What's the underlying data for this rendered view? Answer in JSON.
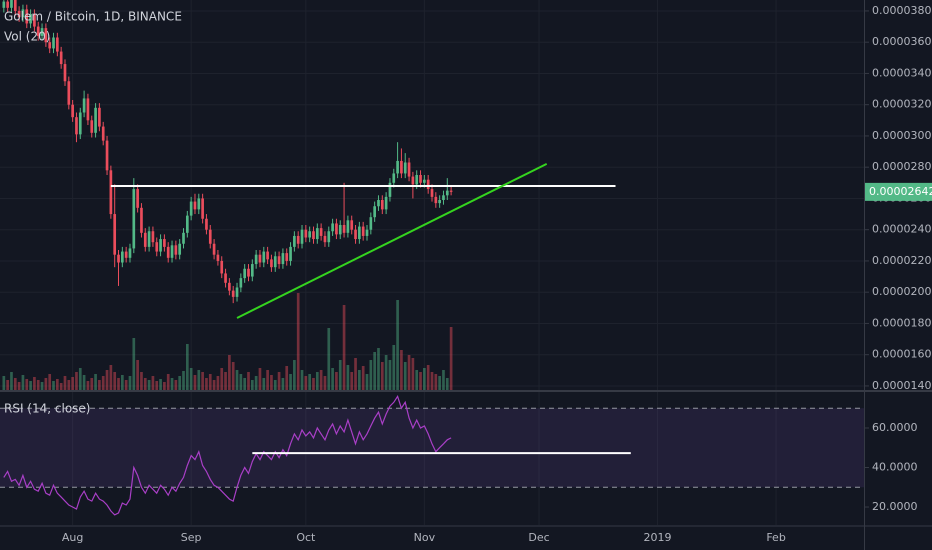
{
  "chart_data": [
    {
      "type": "candlestick",
      "title": "Golem / Bitcoin, 1D, BINANCE",
      "volume_title": "Vol (20)",
      "up_color": "#53b987",
      "down_color": "#eb4d5c",
      "grid": true,
      "xlim": [
        -1,
        225
      ],
      "xticks": [
        {
          "value": 18,
          "label": "Aug"
        },
        {
          "value": 49,
          "label": "Sep"
        },
        {
          "value": 79,
          "label": "Oct"
        },
        {
          "value": 110,
          "label": "Nov"
        },
        {
          "value": 140,
          "label": "Dec"
        },
        {
          "value": 171,
          "label": "2019"
        },
        {
          "value": 202,
          "label": "Feb"
        }
      ],
      "ylim": [
        1.374e-05,
        3.87e-05
      ],
      "yticks": [
        {
          "value": 1.4e-05,
          "label": "0.00001400"
        },
        {
          "value": 1.6e-05,
          "label": "0.00001600"
        },
        {
          "value": 1.8e-05,
          "label": "0.00001800"
        },
        {
          "value": 2e-05,
          "label": "0.00002000"
        },
        {
          "value": 2.2e-05,
          "label": "0.00002200"
        },
        {
          "value": 2.4e-05,
          "label": "0.00002400"
        },
        {
          "value": 2.6e-05,
          "label": "0.00002600"
        },
        {
          "value": 2.8e-05,
          "label": "0.00002800"
        },
        {
          "value": 3e-05,
          "label": "0.00003000"
        },
        {
          "value": 3.2e-05,
          "label": "0.00003200"
        },
        {
          "value": 3.4e-05,
          "label": "0.00003400"
        },
        {
          "value": 3.6e-05,
          "label": "0.00003600"
        },
        {
          "value": 3.8e-05,
          "label": "0.00003800"
        }
      ],
      "price_tag": {
        "value": 2.642e-05,
        "label": "0.00002642"
      },
      "open": [
        3.82e-05,
        3.86e-05,
        3.82e-05,
        3.89e-05,
        3.8e-05,
        3.76e-05,
        3.81e-05,
        3.72e-05,
        3.78e-05,
        3.7e-05,
        3.64e-05,
        3.69e-05,
        3.6e-05,
        3.56e-05,
        3.63e-05,
        3.54e-05,
        3.46e-05,
        3.35e-05,
        3.2e-05,
        3.12e-05,
        3.01e-05,
        3.15e-05,
        3.24e-05,
        3.1e-05,
        3.02e-05,
        3.18e-05,
        3.06e-05,
        2.97e-05,
        2.78e-05,
        2.5e-05,
        2.24e-05,
        2.19e-05,
        2.26e-05,
        2.22e-05,
        2.28e-05,
        2.66e-05,
        2.54e-05,
        2.38e-05,
        2.29e-05,
        2.39e-05,
        2.32e-05,
        2.26e-05,
        2.34e-05,
        2.29e-05,
        2.22e-05,
        2.3e-05,
        2.24e-05,
        2.31e-05,
        2.38e-05,
        2.49e-05,
        2.58e-05,
        2.53e-05,
        2.6e-05,
        2.47e-05,
        2.4e-05,
        2.31e-05,
        2.24e-05,
        2.2e-05,
        2.12e-05,
        2.06e-05,
        2.01e-05,
        1.97e-05,
        2.03e-05,
        2.09e-05,
        2.15e-05,
        2.1e-05,
        2.18e-05,
        2.24e-05,
        2.19e-05,
        2.26e-05,
        2.21e-05,
        2.16e-05,
        2.23e-05,
        2.18e-05,
        2.25e-05,
        2.2e-05,
        2.29e-05,
        2.36e-05,
        2.31e-05,
        2.4e-05,
        2.35e-05,
        2.39e-05,
        2.34e-05,
        2.41e-05,
        2.36e-05,
        2.32e-05,
        2.39e-05,
        2.44e-05,
        2.37e-05,
        2.43e-05,
        2.38e-05,
        2.46e-05,
        2.4e-05,
        2.34e-05,
        2.42e-05,
        2.36e-05,
        2.4e-05,
        2.48e-05,
        2.55e-05,
        2.59e-05,
        2.53e-05,
        2.61e-05,
        2.7e-05,
        2.76e-05,
        2.84e-05,
        2.76e-05,
        2.83e-05,
        2.74e-05,
        2.69e-05,
        2.75e-05,
        2.7e-05,
        2.72e-05,
        2.66e-05,
        2.61e-05,
        2.57e-05,
        2.59e-05,
        2.62e-05,
        2.65e-05
      ],
      "high": [
        3.89e-05,
        3.89e-05,
        3.92e-05,
        3.92e-05,
        3.83e-05,
        3.84e-05,
        3.84e-05,
        3.81e-05,
        3.81e-05,
        3.73e-05,
        3.72e-05,
        3.72e-05,
        3.63e-05,
        3.66e-05,
        3.66e-05,
        3.57e-05,
        3.49e-05,
        3.38e-05,
        3.23e-05,
        3.15e-05,
        3.18e-05,
        3.29e-05,
        3.27e-05,
        3.13e-05,
        3.21e-05,
        3.21e-05,
        3.09e-05,
        3e-05,
        2.81e-05,
        2.69e-05,
        2.27e-05,
        2.29e-05,
        2.29e-05,
        2.31e-05,
        2.73e-05,
        2.69e-05,
        2.57e-05,
        2.41e-05,
        2.42e-05,
        2.42e-05,
        2.35e-05,
        2.37e-05,
        2.37e-05,
        2.32e-05,
        2.33e-05,
        2.33e-05,
        2.34e-05,
        2.41e-05,
        2.52e-05,
        2.61e-05,
        2.63e-05,
        2.63e-05,
        2.63e-05,
        2.5e-05,
        2.43e-05,
        2.34e-05,
        2.27e-05,
        2.23e-05,
        2.15e-05,
        2.09e-05,
        2.04e-05,
        2.06e-05,
        2.12e-05,
        2.18e-05,
        2.18e-05,
        2.21e-05,
        2.27e-05,
        2.27e-05,
        2.29e-05,
        2.29e-05,
        2.24e-05,
        2.26e-05,
        2.26e-05,
        2.28e-05,
        2.28e-05,
        2.32e-05,
        2.39e-05,
        2.39e-05,
        2.43e-05,
        2.43e-05,
        2.42e-05,
        2.42e-05,
        2.44e-05,
        2.44e-05,
        2.39e-05,
        2.42e-05,
        2.47e-05,
        2.47e-05,
        2.46e-05,
        2.7e-05,
        2.49e-05,
        2.49e-05,
        2.43e-05,
        2.45e-05,
        2.45e-05,
        2.43e-05,
        2.51e-05,
        2.58e-05,
        2.62e-05,
        2.62e-05,
        2.64e-05,
        2.73e-05,
        2.79e-05,
        2.96e-05,
        2.92e-05,
        2.89e-05,
        2.86e-05,
        2.77e-05,
        2.78e-05,
        2.78e-05,
        2.75e-05,
        2.75e-05,
        2.69e-05,
        2.64e-05,
        2.62e-05,
        2.65e-05,
        2.73e-05,
        2.68e-05
      ],
      "low": [
        3.79e-05,
        3.79e-05,
        3.79e-05,
        3.77e-05,
        3.73e-05,
        3.73e-05,
        3.69e-05,
        3.69e-05,
        3.67e-05,
        3.61e-05,
        3.61e-05,
        3.57e-05,
        3.53e-05,
        3.53e-05,
        3.51e-05,
        3.43e-05,
        3.32e-05,
        3.17e-05,
        3.09e-05,
        2.96e-05,
        2.98e-05,
        3.12e-05,
        3.07e-05,
        2.99e-05,
        2.99e-05,
        3.03e-05,
        2.94e-05,
        2.75e-05,
        2.47e-05,
        2.16e-05,
        2.04e-05,
        2.16e-05,
        2.19e-05,
        2.19e-05,
        2.25e-05,
        2.51e-05,
        2.35e-05,
        2.26e-05,
        2.26e-05,
        2.29e-05,
        2.23e-05,
        2.23e-05,
        2.26e-05,
        2.19e-05,
        2.19e-05,
        2.21e-05,
        2.21e-05,
        2.28e-05,
        2.35e-05,
        2.46e-05,
        2.5e-05,
        2.5e-05,
        2.44e-05,
        2.37e-05,
        2.28e-05,
        2.21e-05,
        2.17e-05,
        2.09e-05,
        2.03e-05,
        1.98e-05,
        1.93e-05,
        1.94e-05,
        2e-05,
        2.06e-05,
        2.07e-05,
        2.07e-05,
        2.15e-05,
        2.16e-05,
        2.16e-05,
        2.18e-05,
        2.13e-05,
        2.13e-05,
        2.15e-05,
        2.15e-05,
        2.17e-05,
        2.17e-05,
        2.26e-05,
        2.28e-05,
        2.28e-05,
        2.32e-05,
        2.32e-05,
        2.31e-05,
        2.31e-05,
        2.33e-05,
        2.29e-05,
        2.29e-05,
        2.36e-05,
        2.34e-05,
        2.34e-05,
        2.35e-05,
        2.35e-05,
        2.37e-05,
        2.31e-05,
        2.31e-05,
        2.33e-05,
        2.33e-05,
        2.37e-05,
        2.45e-05,
        2.52e-05,
        2.5e-05,
        2.5e-05,
        2.58e-05,
        2.67e-05,
        2.73e-05,
        2.73e-05,
        2.73e-05,
        2.71e-05,
        2.6e-05,
        2.66e-05,
        2.67e-05,
        2.67e-05,
        2.63e-05,
        2.58e-05,
        2.54e-05,
        2.54e-05,
        2.56e-05,
        2.59e-05,
        2.62e-05
      ],
      "close": [
        3.86e-05,
        3.82e-05,
        3.89e-05,
        3.8e-05,
        3.76e-05,
        3.81e-05,
        3.72e-05,
        3.78e-05,
        3.7e-05,
        3.64e-05,
        3.69e-05,
        3.6e-05,
        3.56e-05,
        3.63e-05,
        3.54e-05,
        3.46e-05,
        3.35e-05,
        3.2e-05,
        3.12e-05,
        3.01e-05,
        3.15e-05,
        3.24e-05,
        3.1e-05,
        3.02e-05,
        3.18e-05,
        3.06e-05,
        2.97e-05,
        2.78e-05,
        2.5e-05,
        2.24e-05,
        2.19e-05,
        2.26e-05,
        2.22e-05,
        2.28e-05,
        2.66e-05,
        2.54e-05,
        2.38e-05,
        2.29e-05,
        2.39e-05,
        2.32e-05,
        2.26e-05,
        2.34e-05,
        2.29e-05,
        2.22e-05,
        2.3e-05,
        2.24e-05,
        2.31e-05,
        2.38e-05,
        2.49e-05,
        2.58e-05,
        2.53e-05,
        2.6e-05,
        2.47e-05,
        2.4e-05,
        2.31e-05,
        2.24e-05,
        2.2e-05,
        2.12e-05,
        2.06e-05,
        2.01e-05,
        1.97e-05,
        2.03e-05,
        2.09e-05,
        2.15e-05,
        2.1e-05,
        2.18e-05,
        2.24e-05,
        2.19e-05,
        2.26e-05,
        2.21e-05,
        2.16e-05,
        2.23e-05,
        2.18e-05,
        2.25e-05,
        2.2e-05,
        2.29e-05,
        2.36e-05,
        2.31e-05,
        2.4e-05,
        2.35e-05,
        2.39e-05,
        2.34e-05,
        2.41e-05,
        2.36e-05,
        2.32e-05,
        2.39e-05,
        2.44e-05,
        2.37e-05,
        2.43e-05,
        2.38e-05,
        2.46e-05,
        2.4e-05,
        2.34e-05,
        2.42e-05,
        2.36e-05,
        2.4e-05,
        2.48e-05,
        2.55e-05,
        2.59e-05,
        2.53e-05,
        2.61e-05,
        2.7e-05,
        2.76e-05,
        2.84e-05,
        2.76e-05,
        2.83e-05,
        2.74e-05,
        2.69e-05,
        2.75e-05,
        2.7e-05,
        2.72e-05,
        2.66e-05,
        2.61e-05,
        2.57e-05,
        2.59e-05,
        2.62e-05,
        2.65e-05,
        2.642e-05
      ],
      "volume": [
        14,
        10,
        18,
        12,
        8,
        15,
        11,
        9,
        13,
        10,
        8,
        12,
        16,
        9,
        11,
        7,
        14,
        10,
        13,
        18,
        22,
        15,
        9,
        12,
        16,
        10,
        14,
        20,
        25,
        18,
        12,
        15,
        10,
        14,
        52,
        30,
        18,
        12,
        10,
        14,
        9,
        11,
        8,
        16,
        12,
        10,
        14,
        19,
        46,
        22,
        15,
        20,
        18,
        12,
        16,
        10,
        14,
        22,
        18,
        35,
        28,
        20,
        16,
        12,
        18,
        10,
        14,
        22,
        12,
        20,
        15,
        10,
        18,
        12,
        24,
        16,
        30,
        97,
        20,
        14,
        16,
        12,
        18,
        20,
        14,
        62,
        22,
        18,
        30,
        85,
        25,
        18,
        32,
        20,
        24,
        16,
        30,
        38,
        42,
        28,
        35,
        30,
        45,
        90,
        40,
        28,
        35,
        32,
        20,
        18,
        22,
        25,
        18,
        16,
        14,
        20,
        12,
        63
      ],
      "drawings": [
        {
          "color": "#ffffff",
          "points": [
            [
              28,
              2.68e-05
            ],
            [
              160,
              2.68e-05
            ]
          ]
        },
        {
          "color": "#35d41f",
          "points": [
            [
              61,
              1.835e-05
            ],
            [
              142,
              2.821e-05
            ]
          ]
        }
      ]
    },
    {
      "type": "line",
      "title": "RSI (14, close)",
      "color": "#a93fc7",
      "band_color": "#7e57c2",
      "ylim": [
        10.9,
        77.7
      ],
      "yticks": [
        {
          "value": 20,
          "label": "20.0000"
        },
        {
          "value": 40,
          "label": "40.0000"
        },
        {
          "value": 60,
          "label": "60.0000"
        }
      ],
      "bands": [
        30,
        70
      ],
      "values": [
        35,
        38,
        33,
        34,
        31,
        36,
        30,
        33,
        29,
        28,
        32,
        27,
        26,
        31,
        27,
        25,
        23,
        21,
        20,
        19,
        25,
        28,
        24,
        23,
        27,
        24,
        23,
        21,
        18,
        16,
        17,
        22,
        21,
        24,
        40,
        36,
        30,
        27,
        31,
        29,
        27,
        31,
        29,
        26,
        30,
        28,
        32,
        35,
        41,
        46,
        44,
        48,
        41,
        38,
        34,
        31,
        30,
        28,
        26,
        24,
        23,
        30,
        36,
        40,
        37,
        43,
        47,
        44,
        48,
        46,
        44,
        48,
        45,
        49,
        46,
        52,
        57,
        54,
        59,
        56,
        58,
        55,
        60,
        57,
        54,
        59,
        62,
        57,
        61,
        58,
        64,
        58,
        52,
        58,
        54,
        57,
        61,
        65,
        68,
        62,
        67,
        71,
        73,
        76,
        70,
        73,
        65,
        60,
        64,
        60,
        61,
        57,
        52,
        48,
        50,
        52,
        54,
        55
      ],
      "drawings": [
        {
          "color": "#ffffff",
          "points": [
            [
              65,
              47.3
            ],
            [
              164,
              47.3
            ]
          ]
        }
      ]
    }
  ]
}
